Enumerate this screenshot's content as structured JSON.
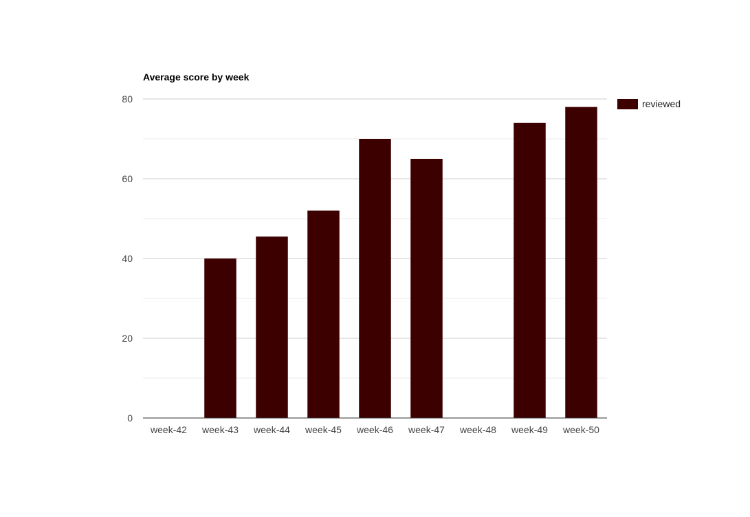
{
  "chart_data": {
    "type": "bar",
    "title": "Average score by week",
    "xlabel": "",
    "ylabel": "",
    "categories": [
      "week-42",
      "week-43",
      "week-44",
      "week-45",
      "week-46",
      "week-47",
      "week-48",
      "week-49",
      "week-50"
    ],
    "series": [
      {
        "name": "reviewed",
        "values": [
          0,
          40,
          45.5,
          52,
          70,
          65,
          0,
          74,
          78
        ],
        "color": "#3d0000"
      }
    ],
    "ylim": [
      0,
      80
    ],
    "yticks": [
      0,
      20,
      40,
      60,
      80
    ],
    "minor_gridlines": [
      10,
      30,
      50,
      70
    ],
    "grid": true,
    "legend_position": "right"
  }
}
